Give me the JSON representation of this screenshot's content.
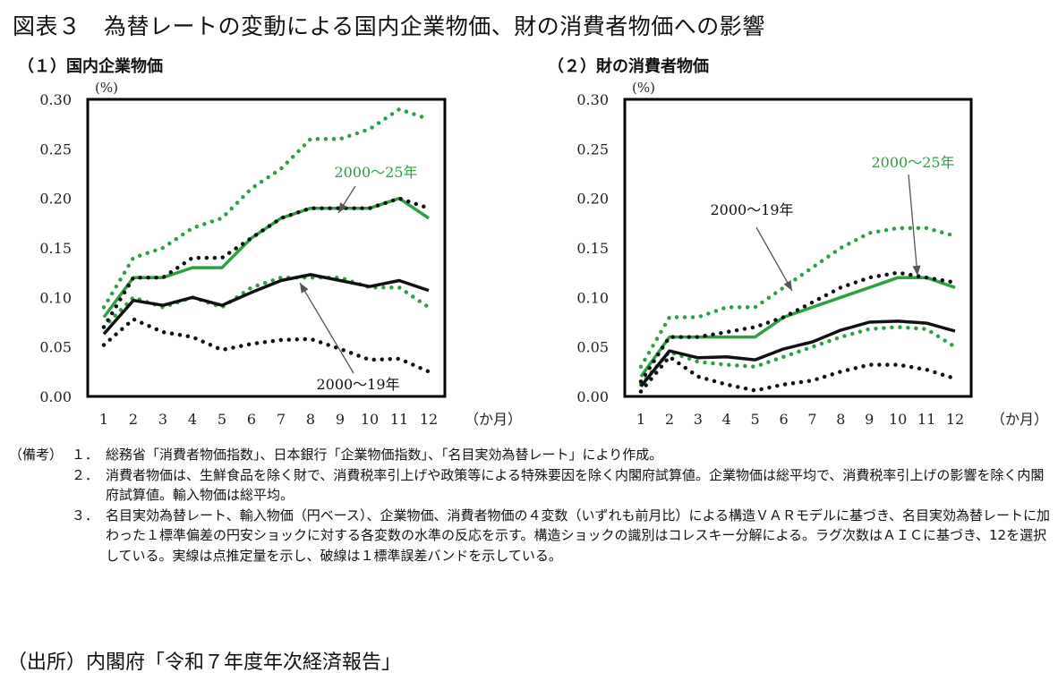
{
  "title": "図表３　為替レートの変動による国内企業物価、財の消費者物価への影響",
  "colors": {
    "green": "#2ea043",
    "black": "#111111",
    "frame": "#000000"
  },
  "chart_data": [
    {
      "type": "line",
      "title": "（１）国内企業物価",
      "ylabel": "(%)",
      "xlabel": "（か月）",
      "x": [
        1,
        2,
        3,
        4,
        5,
        6,
        7,
        8,
        9,
        10,
        11,
        12
      ],
      "ylim": [
        0,
        0.3
      ],
      "yticks": [
        "0.00",
        "0.05",
        "0.10",
        "0.15",
        "0.20",
        "0.25",
        "0.30"
      ],
      "series": [
        {
          "name": "2000〜25年",
          "style": "solid",
          "color": "green",
          "values": [
            0.08,
            0.12,
            0.12,
            0.13,
            0.13,
            0.16,
            0.18,
            0.19,
            0.19,
            0.19,
            0.2,
            0.18
          ]
        },
        {
          "name": "2000〜25年 upper",
          "style": "dotted",
          "color": "green",
          "values": [
            0.09,
            0.14,
            0.15,
            0.17,
            0.18,
            0.21,
            0.23,
            0.26,
            0.26,
            0.27,
            0.29,
            0.28
          ]
        },
        {
          "name": "2000〜25年 lower",
          "style": "dotted",
          "color": "green",
          "values": [
            0.07,
            0.1,
            0.09,
            0.1,
            0.09,
            0.11,
            0.12,
            0.12,
            0.12,
            0.11,
            0.11,
            0.09
          ]
        },
        {
          "name": "2000〜19年",
          "style": "solid",
          "color": "black",
          "values": [
            0.063,
            0.097,
            0.092,
            0.1,
            0.092,
            0.105,
            0.117,
            0.123,
            0.117,
            0.111,
            0.117,
            0.107
          ]
        },
        {
          "name": "2000〜19年 upper",
          "style": "dotted",
          "color": "black",
          "values": [
            0.07,
            0.12,
            0.12,
            0.14,
            0.14,
            0.16,
            0.18,
            0.19,
            0.19,
            0.19,
            0.2,
            0.19
          ]
        },
        {
          "name": "2000〜19年 lower",
          "style": "dotted",
          "color": "black",
          "values": [
            0.052,
            0.078,
            0.065,
            0.06,
            0.047,
            0.053,
            0.057,
            0.058,
            0.048,
            0.037,
            0.038,
            0.025
          ]
        }
      ],
      "annotations": [
        {
          "text": "2000〜25年",
          "color": "green"
        },
        {
          "text": "2000〜19年",
          "color": "black"
        }
      ]
    },
    {
      "type": "line",
      "title": "（２）財の消費者物価",
      "ylabel": "(%)",
      "xlabel": "（か月）",
      "x": [
        1,
        2,
        3,
        4,
        5,
        6,
        7,
        8,
        9,
        10,
        11,
        12
      ],
      "ylim": [
        0,
        0.3
      ],
      "yticks": [
        "0.00",
        "0.05",
        "0.10",
        "0.15",
        "0.20",
        "0.25",
        "0.30"
      ],
      "series": [
        {
          "name": "2000〜25年",
          "style": "solid",
          "color": "green",
          "values": [
            0.02,
            0.06,
            0.06,
            0.06,
            0.06,
            0.08,
            0.09,
            0.1,
            0.11,
            0.12,
            0.12,
            0.11
          ]
        },
        {
          "name": "2000〜25年 upper",
          "style": "dotted",
          "color": "green",
          "values": [
            0.03,
            0.08,
            0.08,
            0.09,
            0.09,
            0.11,
            0.13,
            0.15,
            0.165,
            0.17,
            0.17,
            0.162
          ]
        },
        {
          "name": "2000〜25年 lower",
          "style": "dotted",
          "color": "green",
          "values": [
            0.012,
            0.045,
            0.035,
            0.032,
            0.03,
            0.04,
            0.05,
            0.06,
            0.068,
            0.07,
            0.068,
            0.05
          ]
        },
        {
          "name": "2000〜19年",
          "style": "solid",
          "color": "black",
          "values": [
            0.01,
            0.046,
            0.039,
            0.04,
            0.037,
            0.048,
            0.055,
            0.067,
            0.075,
            0.076,
            0.074,
            0.066
          ]
        },
        {
          "name": "2000〜19年 upper",
          "style": "dotted",
          "color": "black",
          "values": [
            0.015,
            0.06,
            0.06,
            0.065,
            0.07,
            0.08,
            0.095,
            0.11,
            0.12,
            0.125,
            0.12,
            0.115
          ]
        },
        {
          "name": "2000〜19年 lower",
          "style": "dotted",
          "color": "black",
          "values": [
            0.005,
            0.04,
            0.02,
            0.012,
            0.006,
            0.012,
            0.016,
            0.025,
            0.032,
            0.032,
            0.027,
            0.018
          ]
        }
      ],
      "annotations": [
        {
          "text": "2000〜25年",
          "color": "green"
        },
        {
          "text": "2000〜19年",
          "color": "black"
        }
      ]
    }
  ],
  "notes": {
    "head": "（備考）",
    "items": [
      {
        "num": "１．",
        "text": "総務省「消費者物価指数」、日本銀行「企業物価指数」、「名目実効為替レート」により作成。"
      },
      {
        "num": "２．",
        "text": "消費者物価は、生鮮食品を除く財で、消費税率引上げや政策等による特殊要因を除く内閣府試算値。企業物価は総平均で、消費税率引上げの影響を除く内閣府試算値。輸入物価は総平均。"
      },
      {
        "num": "３．",
        "text": "名目実効為替レート、輸入物価（円ベース）、企業物価、消費者物価の４変数（いずれも前月比）による構造ＶＡＲモデルに基づき、名目実効為替レートに加わった１標準偏差の円安ショックに対する各変数の水準の反応を示す。構造ショックの識別はコレスキー分解による。ラグ次数はＡＩＣに基づき、12を選択している。実線は点推定量を示し、破線は１標準誤差バンドを示している。"
      }
    ]
  },
  "source": "（出所）内閣府「令和７年度年次経済報告」"
}
